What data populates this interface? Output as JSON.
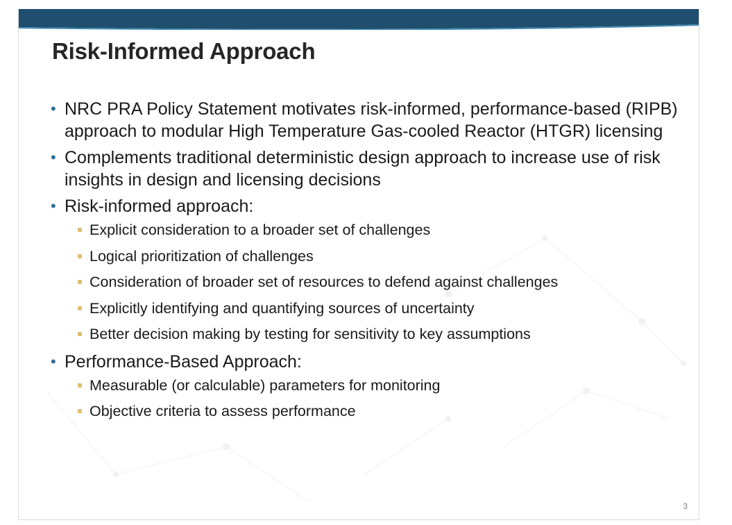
{
  "slide": {
    "title": "Risk-Informed Approach",
    "page_number": "3",
    "bullets": [
      {
        "text": "NRC PRA Policy Statement motivates risk-informed, performance-based (RIPB) approach to modular High Temperature Gas-cooled Reactor (HTGR) licensing"
      },
      {
        "text": "Complements traditional deterministic design approach to increase use of risk insights in design and licensing decisions"
      },
      {
        "text": "Risk-informed approach:",
        "sub": [
          "Explicit consideration to a broader set of challenges",
          "Logical prioritization of challenges",
          "Consideration of broader set of resources to defend against challenges",
          "Explicitly identifying and quantifying sources of uncertainty",
          "Better decision making by testing for sensitivity to key assumptions"
        ]
      },
      {
        "text": "Performance-Based Approach:",
        "sub": [
          "Measurable (or calculable) parameters for monitoring",
          "Objective criteria to assess performance"
        ]
      }
    ]
  },
  "colors": {
    "banner": "#1f4e6e",
    "bullet_dot": "#2c6f9a",
    "sub_bullet": "#e2bf72",
    "title_text": "#262626"
  }
}
